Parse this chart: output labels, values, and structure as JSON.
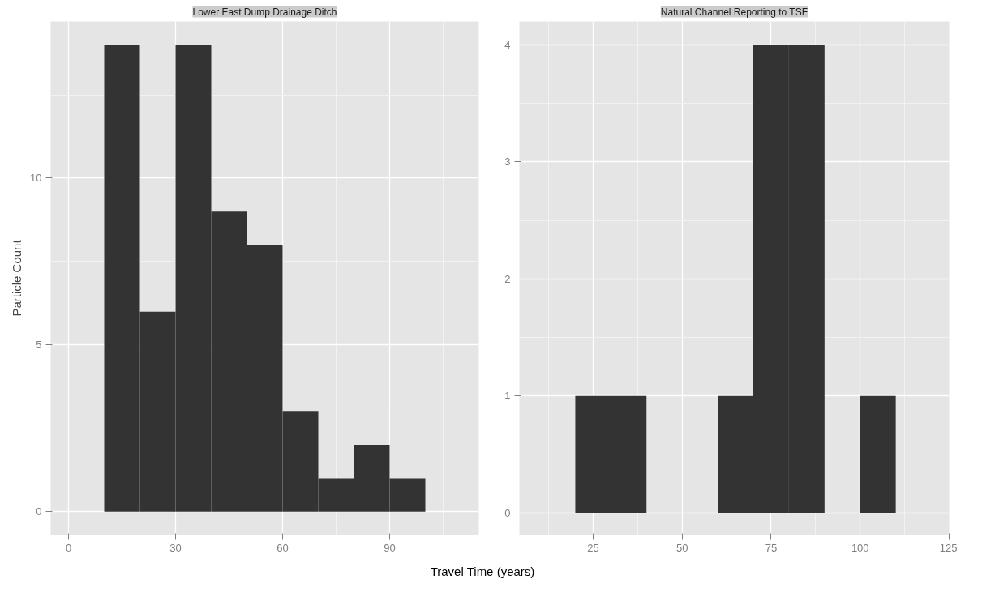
{
  "chart_data": [
    {
      "type": "histogram",
      "title": "Lower East Dump Drainage Ditch",
      "xlabel": "Travel Time (years)",
      "ylabel": "Particle Count",
      "color": "#333333",
      "bins": [
        10,
        20,
        30,
        40,
        50,
        60,
        70,
        80,
        90,
        100
      ],
      "values": [
        14,
        6,
        14,
        9,
        8,
        3,
        1,
        2,
        1
      ],
      "xlim": [
        -5,
        115
      ],
      "xticks": [
        0,
        30,
        60,
        90
      ],
      "ylim": [
        -0.7,
        14.7
      ],
      "yticks": [
        0,
        5,
        10
      ],
      "grid": true
    },
    {
      "type": "histogram",
      "title": "Natural Channel Reporting to TSF",
      "color": "#333333",
      "bins": [
        20,
        30,
        40,
        50,
        60,
        70,
        80,
        90,
        100,
        110
      ],
      "values": [
        1,
        1,
        0,
        0,
        1,
        4,
        4,
        0,
        1
      ],
      "xlim": [
        4.3,
        125
      ],
      "xticks": [
        25,
        50,
        75,
        100,
        125
      ],
      "ylim": [
        -0.19,
        4.2
      ],
      "yticks": [
        0,
        1,
        2,
        3,
        4
      ],
      "grid": true
    }
  ]
}
